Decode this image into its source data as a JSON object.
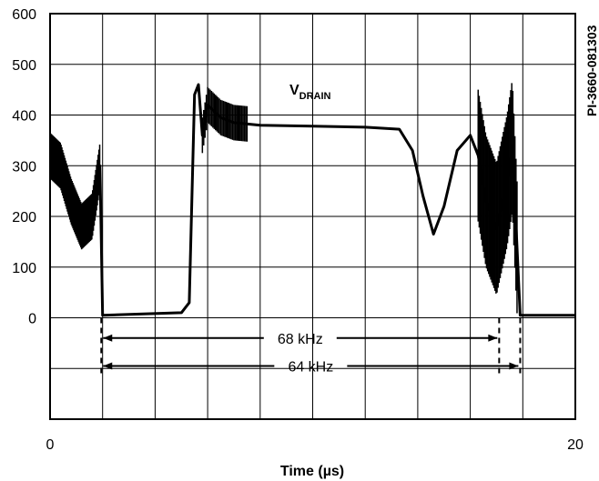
{
  "figure_id": "PI-3660-081303",
  "chart_data": {
    "type": "line",
    "title": "",
    "xlabel": "Time (µs)",
    "ylabel": "",
    "xlim": [
      0,
      20
    ],
    "ylim": [
      -200,
      600
    ],
    "x_ticks": [
      {
        "value": 0,
        "label": "0"
      },
      {
        "value": 20,
        "label": "20"
      }
    ],
    "y_ticks": [
      {
        "value": 0,
        "label": "0"
      },
      {
        "value": 100,
        "label": "100"
      },
      {
        "value": 200,
        "label": "200"
      },
      {
        "value": 300,
        "label": "300"
      },
      {
        "value": 400,
        "label": "400"
      },
      {
        "value": 500,
        "label": "500"
      },
      {
        "value": 600,
        "label": "600"
      }
    ],
    "grid": true,
    "trace_label": {
      "main": "V",
      "subscript": "DRAIN"
    },
    "series": [
      {
        "x": [
          0.0,
          0.4,
          0.8,
          1.2,
          1.6,
          1.9,
          1.95,
          2.0,
          5.0,
          5.3,
          5.5,
          5.65,
          5.8,
          6.0,
          6.5,
          7.0,
          8.0,
          10.0,
          12.0,
          13.3,
          13.8,
          14.2,
          14.6,
          15.0,
          15.5,
          16.0,
          16.3,
          16.6,
          17.0,
          17.4,
          17.6,
          17.9,
          20.0
        ],
        "y": [
          320,
          300,
          230,
          180,
          200,
          300,
          150,
          5,
          10,
          30,
          440,
          460,
          360,
          420,
          395,
          385,
          380,
          378,
          376,
          372,
          330,
          240,
          165,
          220,
          330,
          360,
          320,
          230,
          175,
          270,
          340,
          5,
          5
        ]
      }
    ],
    "annotations": [
      {
        "text": "68 kHz",
        "x_start": 1.95,
        "x_end": 17.1,
        "y": -40
      },
      {
        "text": "64 kHz",
        "x_start": 1.95,
        "x_end": 17.9,
        "y": -95
      }
    ]
  }
}
